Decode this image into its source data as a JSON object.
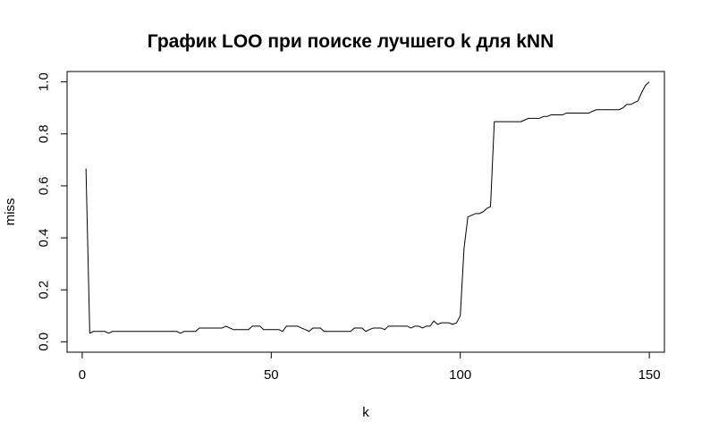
{
  "chart_data": {
    "type": "line",
    "title": "График LOO при поиске лучшего k для kNN",
    "xlabel": "k",
    "ylabel": "miss",
    "xlim": [
      -4,
      154
    ],
    "ylim": [
      -0.04,
      1.04
    ],
    "x_ticks": [
      0,
      50,
      100,
      150
    ],
    "y_ticks": [
      0.0,
      0.2,
      0.4,
      0.6,
      0.8,
      1.0
    ],
    "x_tick_labels": [
      "0",
      "50",
      "100",
      "150"
    ],
    "y_tick_labels": [
      "0.0",
      "0.2",
      "0.4",
      "0.6",
      "0.8",
      "1.0"
    ],
    "grid": false,
    "series": [
      {
        "color": "#000000",
        "points": [
          [
            1,
            0.667
          ],
          [
            2,
            0.033
          ],
          [
            3,
            0.04
          ],
          [
            4,
            0.04
          ],
          [
            5,
            0.04
          ],
          [
            6,
            0.04
          ],
          [
            7,
            0.033
          ],
          [
            8,
            0.04
          ],
          [
            9,
            0.04
          ],
          [
            10,
            0.04
          ],
          [
            11,
            0.04
          ],
          [
            12,
            0.04
          ],
          [
            13,
            0.04
          ],
          [
            14,
            0.04
          ],
          [
            15,
            0.04
          ],
          [
            16,
            0.04
          ],
          [
            17,
            0.04
          ],
          [
            18,
            0.04
          ],
          [
            19,
            0.04
          ],
          [
            20,
            0.04
          ],
          [
            21,
            0.04
          ],
          [
            22,
            0.04
          ],
          [
            23,
            0.04
          ],
          [
            24,
            0.04
          ],
          [
            25,
            0.04
          ],
          [
            26,
            0.033
          ],
          [
            27,
            0.04
          ],
          [
            28,
            0.04
          ],
          [
            29,
            0.04
          ],
          [
            30,
            0.04
          ],
          [
            31,
            0.053
          ],
          [
            32,
            0.053
          ],
          [
            33,
            0.053
          ],
          [
            34,
            0.053
          ],
          [
            35,
            0.053
          ],
          [
            36,
            0.053
          ],
          [
            37,
            0.053
          ],
          [
            38,
            0.06
          ],
          [
            39,
            0.053
          ],
          [
            40,
            0.047
          ],
          [
            41,
            0.047
          ],
          [
            42,
            0.047
          ],
          [
            43,
            0.047
          ],
          [
            44,
            0.047
          ],
          [
            45,
            0.06
          ],
          [
            46,
            0.06
          ],
          [
            47,
            0.06
          ],
          [
            48,
            0.047
          ],
          [
            49,
            0.047
          ],
          [
            50,
            0.047
          ],
          [
            51,
            0.047
          ],
          [
            52,
            0.047
          ],
          [
            53,
            0.04
          ],
          [
            54,
            0.06
          ],
          [
            55,
            0.06
          ],
          [
            56,
            0.06
          ],
          [
            57,
            0.06
          ],
          [
            58,
            0.053
          ],
          [
            59,
            0.047
          ],
          [
            60,
            0.04
          ],
          [
            61,
            0.053
          ],
          [
            62,
            0.053
          ],
          [
            63,
            0.053
          ],
          [
            64,
            0.04
          ],
          [
            65,
            0.04
          ],
          [
            66,
            0.04
          ],
          [
            67,
            0.04
          ],
          [
            68,
            0.04
          ],
          [
            69,
            0.04
          ],
          [
            70,
            0.04
          ],
          [
            71,
            0.04
          ],
          [
            72,
            0.053
          ],
          [
            73,
            0.053
          ],
          [
            74,
            0.053
          ],
          [
            75,
            0.04
          ],
          [
            76,
            0.047
          ],
          [
            77,
            0.053
          ],
          [
            78,
            0.053
          ],
          [
            79,
            0.053
          ],
          [
            80,
            0.047
          ],
          [
            81,
            0.06
          ],
          [
            82,
            0.06
          ],
          [
            83,
            0.06
          ],
          [
            84,
            0.06
          ],
          [
            85,
            0.06
          ],
          [
            86,
            0.06
          ],
          [
            87,
            0.053
          ],
          [
            88,
            0.06
          ],
          [
            89,
            0.06
          ],
          [
            90,
            0.053
          ],
          [
            91,
            0.06
          ],
          [
            92,
            0.06
          ],
          [
            93,
            0.08
          ],
          [
            94,
            0.067
          ],
          [
            95,
            0.073
          ],
          [
            96,
            0.073
          ],
          [
            97,
            0.073
          ],
          [
            98,
            0.067
          ],
          [
            99,
            0.073
          ],
          [
            100,
            0.1
          ],
          [
            101,
            0.36
          ],
          [
            102,
            0.48
          ],
          [
            103,
            0.487
          ],
          [
            104,
            0.493
          ],
          [
            105,
            0.493
          ],
          [
            106,
            0.5
          ],
          [
            107,
            0.513
          ],
          [
            108,
            0.52
          ],
          [
            109,
            0.847
          ],
          [
            110,
            0.847
          ],
          [
            111,
            0.847
          ],
          [
            112,
            0.847
          ],
          [
            113,
            0.847
          ],
          [
            114,
            0.847
          ],
          [
            115,
            0.847
          ],
          [
            116,
            0.847
          ],
          [
            117,
            0.853
          ],
          [
            118,
            0.86
          ],
          [
            119,
            0.86
          ],
          [
            120,
            0.86
          ],
          [
            121,
            0.86
          ],
          [
            122,
            0.867
          ],
          [
            123,
            0.867
          ],
          [
            124,
            0.873
          ],
          [
            125,
            0.873
          ],
          [
            126,
            0.873
          ],
          [
            127,
            0.873
          ],
          [
            128,
            0.88
          ],
          [
            129,
            0.88
          ],
          [
            130,
            0.88
          ],
          [
            131,
            0.88
          ],
          [
            132,
            0.88
          ],
          [
            133,
            0.88
          ],
          [
            134,
            0.88
          ],
          [
            135,
            0.887
          ],
          [
            136,
            0.893
          ],
          [
            137,
            0.893
          ],
          [
            138,
            0.893
          ],
          [
            139,
            0.893
          ],
          [
            140,
            0.893
          ],
          [
            141,
            0.893
          ],
          [
            142,
            0.893
          ],
          [
            143,
            0.9
          ],
          [
            144,
            0.913
          ],
          [
            145,
            0.913
          ],
          [
            146,
            0.92
          ],
          [
            147,
            0.927
          ],
          [
            148,
            0.96
          ],
          [
            149,
            0.987
          ],
          [
            150,
            1.0
          ]
        ]
      }
    ]
  }
}
